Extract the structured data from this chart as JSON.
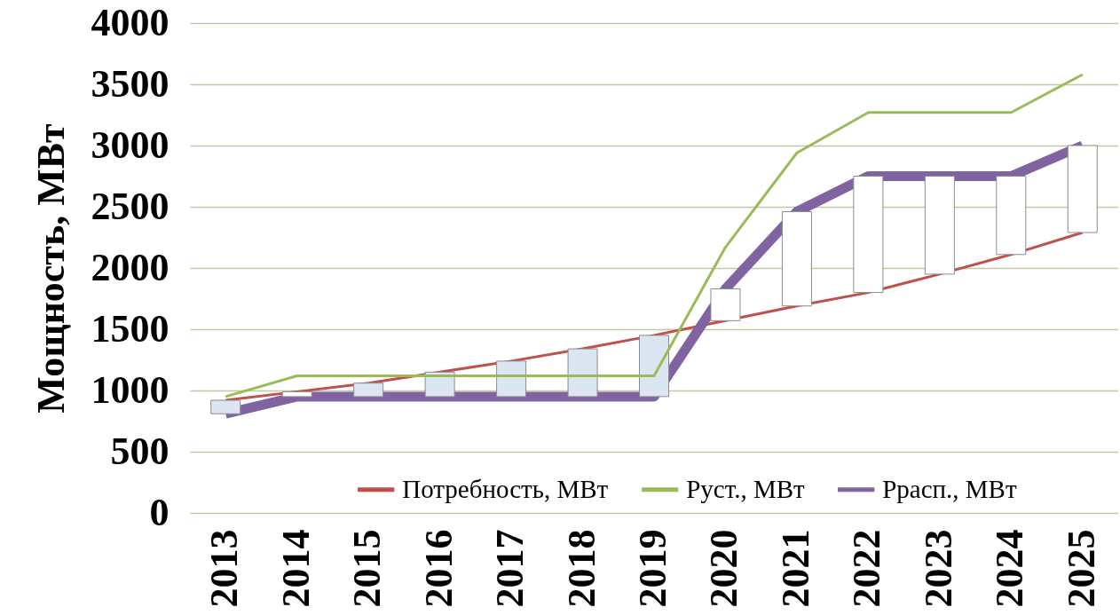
{
  "chart_data": {
    "type": "line",
    "ylabel": "Мощность, МВт",
    "categories": [
      "2013",
      "2014",
      "2015",
      "2016",
      "2017",
      "2018",
      "2019",
      "2020",
      "2021",
      "2022",
      "2023",
      "2024",
      "2025"
    ],
    "series": [
      {
        "name": "Потребность, МВт",
        "color": "#c0504d",
        "values": [
          920,
          990,
          1060,
          1150,
          1240,
          1340,
          1450,
          1570,
          1690,
          1800,
          1950,
          2110,
          2290
        ]
      },
      {
        "name": "Руст., МВт",
        "color": "#9bbb59",
        "values": [
          950,
          1120,
          1120,
          1120,
          1120,
          1120,
          1120,
          2170,
          2940,
          3270,
          3270,
          3270,
          3580
        ]
      },
      {
        "name": "Ррасп., МВт",
        "color": "#8064a2",
        "values": [
          810,
          950,
          950,
          950,
          950,
          950,
          950,
          1830,
          2460,
          2750,
          2750,
          2750,
          3000
        ]
      },
      {
        "type": "bar",
        "base": [
          920,
          990,
          1060,
          1150,
          1240,
          1340,
          1450,
          1570,
          1690,
          1800,
          1950,
          2110,
          2290
        ],
        "values": [
          -110,
          -40,
          -110,
          -200,
          -290,
          -390,
          -500,
          260,
          770,
          950,
          800,
          640,
          710
        ],
        "colors": [
          "#dce6f2",
          "#ffffff",
          "#dce6f2",
          "#dce6f2",
          "#dce6f2",
          "#dce6f2",
          "#dce6f2",
          "#ffffff",
          "#ffffff",
          "#ffffff",
          "#ffffff",
          "#ffffff",
          "#ffffff"
        ]
      }
    ],
    "ylim": [
      0,
      4000
    ],
    "yticks": [
      0,
      500,
      1000,
      1500,
      2000,
      2500,
      3000,
      3500,
      4000
    ],
    "grid": "y",
    "legend": "bottom"
  }
}
